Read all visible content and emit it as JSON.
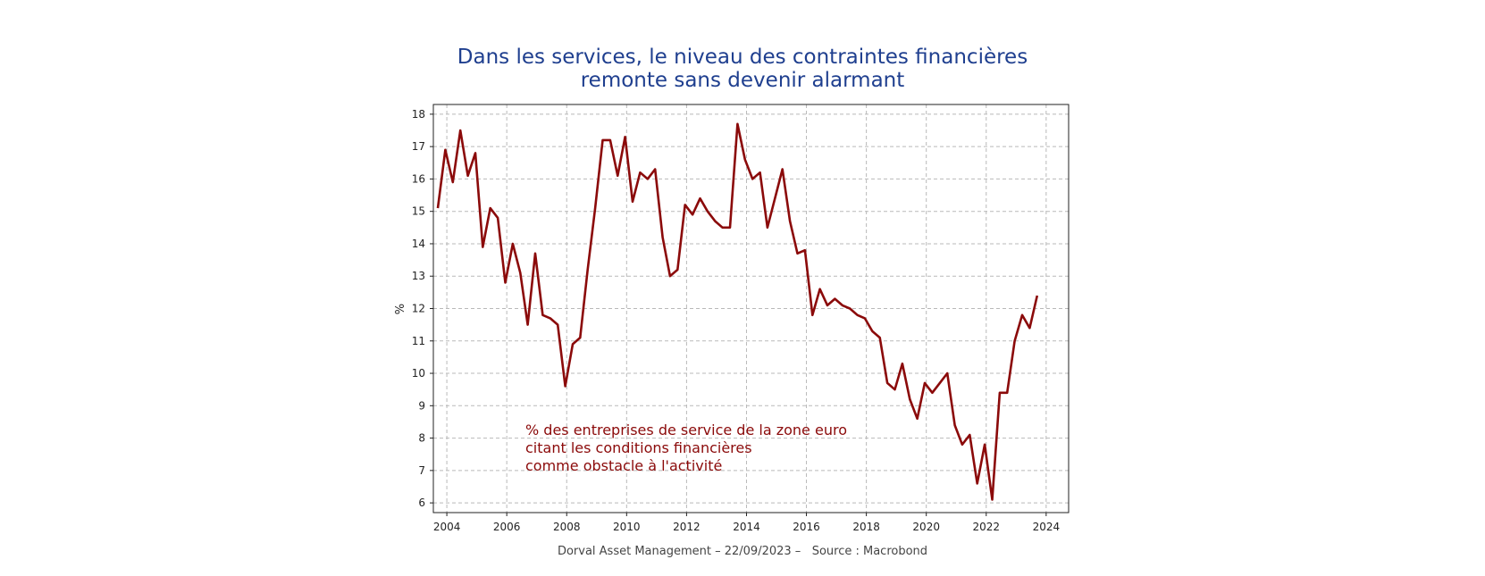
{
  "chart_data": {
    "type": "line",
    "title": "Dans les services, le niveau des contraintes financières remonte sans devenir alarmant",
    "title_lines": [
      "Dans les services, le niveau des contraintes financières",
      "remonte sans devenir alarmant"
    ],
    "ylabel": "%",
    "xlabel": "",
    "ylim": [
      5.7,
      18.3
    ],
    "xlim": [
      2003.55,
      2024.75
    ],
    "y_ticks": [
      6,
      7,
      8,
      9,
      10,
      11,
      12,
      13,
      14,
      15,
      16,
      17,
      18
    ],
    "x_ticks": [
      2004,
      2006,
      2008,
      2010,
      2012,
      2014,
      2016,
      2018,
      2020,
      2022,
      2024
    ],
    "grid": true,
    "annotation_lines": [
      "% des entreprises de service de la zone euro",
      "citant les conditions financières",
      "comme obstacle à l'activité"
    ],
    "line_color": "#8b0a0a",
    "series": [
      {
        "x": [
          2003.7,
          2003.95,
          2004.2,
          2004.45,
          2004.7,
          2004.95,
          2005.2,
          2005.45,
          2005.7,
          2005.95,
          2006.2,
          2006.45,
          2006.7,
          2006.95,
          2007.2,
          2007.45,
          2007.7,
          2007.95,
          2008.2,
          2008.45,
          2008.7,
          2008.95,
          2009.2,
          2009.45,
          2009.7,
          2009.95,
          2010.2,
          2010.45,
          2010.7,
          2010.95,
          2011.2,
          2011.45,
          2011.7,
          2011.95,
          2012.2,
          2012.45,
          2012.7,
          2012.95,
          2013.2,
          2013.45,
          2013.7,
          2013.95,
          2014.2,
          2014.45,
          2014.7,
          2014.95,
          2015.2,
          2015.45,
          2015.7,
          2015.95,
          2016.2,
          2016.45,
          2016.7,
          2016.95,
          2017.2,
          2017.45,
          2017.7,
          2017.95,
          2018.2,
          2018.45,
          2018.7,
          2018.95,
          2019.2,
          2019.45,
          2019.7,
          2019.95,
          2020.2,
          2020.45,
          2020.7,
          2020.95,
          2021.2,
          2021.45,
          2021.7,
          2021.95,
          2022.2,
          2022.45,
          2022.7,
          2022.95,
          2023.2,
          2023.45,
          2023.7
        ],
        "values": [
          15.1,
          16.9,
          15.9,
          17.5,
          16.1,
          16.8,
          13.9,
          15.1,
          14.8,
          12.8,
          14.0,
          13.1,
          11.5,
          13.7,
          11.8,
          11.7,
          11.5,
          9.6,
          10.9,
          11.1,
          13.2,
          15.1,
          17.2,
          17.2,
          16.1,
          17.3,
          15.3,
          16.2,
          16.0,
          16.3,
          14.2,
          13.0,
          13.2,
          15.2,
          14.9,
          15.4,
          15.0,
          14.7,
          14.5,
          14.5,
          17.7,
          16.6,
          16.0,
          16.2,
          14.5,
          15.4,
          16.3,
          14.7,
          13.7,
          13.8,
          11.8,
          12.6,
          12.1,
          12.3,
          12.1,
          12.0,
          11.8,
          11.7,
          11.3,
          11.1,
          9.7,
          9.5,
          10.3,
          9.2,
          8.6,
          9.7,
          9.4,
          9.7,
          10.0,
          8.4,
          7.8,
          8.1,
          6.6,
          7.8,
          6.1,
          9.4,
          9.4,
          11.0,
          11.8,
          11.4,
          12.4
        ]
      }
    ]
  },
  "footer": {
    "text": "Dorval Asset Management – 22/09/2023 –   Source : Macrobond"
  }
}
